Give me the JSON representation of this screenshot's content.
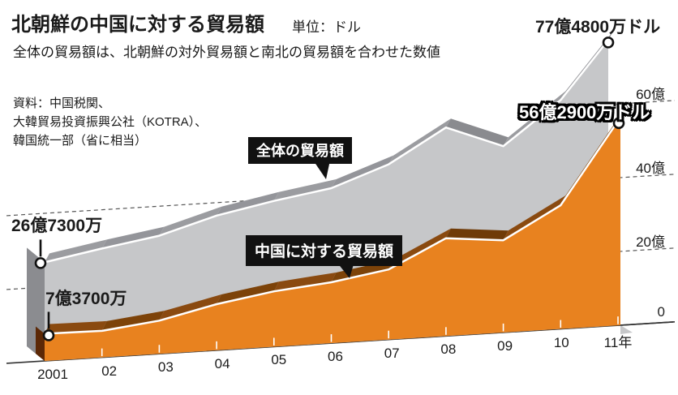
{
  "header": {
    "title": "北朝鮮の中国に対する貿易額",
    "unit_label": "単位：ドル",
    "subtitle": "全体の貿易額は、北朝鮮の対外貿易額と南北の貿易額を合わせた数値",
    "source_lines": [
      "資料：中国税関、",
      "大韓貿易投資振興公社（KOTRA）、",
      "韓国統一部（省に相当）"
    ]
  },
  "series_labels": {
    "total": "全体の貿易額",
    "china": "中国に対する貿易額"
  },
  "annotations": {
    "total_2011": "77億4800万ドル",
    "china_2011": "56億2900万ドル",
    "total_2001": "26億7300万",
    "china_2001": "7億3700万"
  },
  "chart_data": {
    "type": "area",
    "title": "北朝鮮の中国に対する貿易額",
    "unit": "億ドル (100 million USD)",
    "x": [
      "2001",
      "02",
      "03",
      "04",
      "05",
      "06",
      "07",
      "08",
      "09",
      "10",
      "11年"
    ],
    "series": [
      {
        "name": "全体の貿易額",
        "values": [
          26.73,
          29.5,
          32.0,
          36.5,
          39.5,
          42.0,
          47.5,
          56.5,
          50.5,
          62.0,
          77.48
        ],
        "front_color": "#c6c7c9",
        "band_color": "#9b9ca0",
        "band_alt": "#94959a",
        "band_dark": "#8a8b8f",
        "side_color": "#8b8c90"
      },
      {
        "name": "中国に対する貿易額",
        "values": [
          7.37,
          7.2,
          9.0,
          12.5,
          15.0,
          16.5,
          19.0,
          26.5,
          25.0,
          33.5,
          56.29
        ],
        "front_color": "#e8821f",
        "band_color": "#8a4a10",
        "band_alt": "#7d4309",
        "band_dark": "#6f3b08",
        "side_color": "#5c2806"
      }
    ],
    "ylabels": [
      "60億",
      "40億",
      "20億",
      "0"
    ],
    "ytick_values": [
      60,
      40,
      20,
      0
    ],
    "ylim": [
      0,
      80
    ],
    "grid": "dashed",
    "legend_position": "inline-callouts",
    "endpoint_labels": {
      "total_first": 26.73,
      "total_last": 77.48,
      "china_first": 7.37,
      "china_last": 56.29
    },
    "colors": {
      "grid": "#555",
      "axis": "#333",
      "tick_white": "#ffffff",
      "edge_line": "#ffffff",
      "callout_bg": "#111111",
      "marker_fill": "#ffffff",
      "marker_stroke": "#111111",
      "background": "#ffffff"
    }
  }
}
